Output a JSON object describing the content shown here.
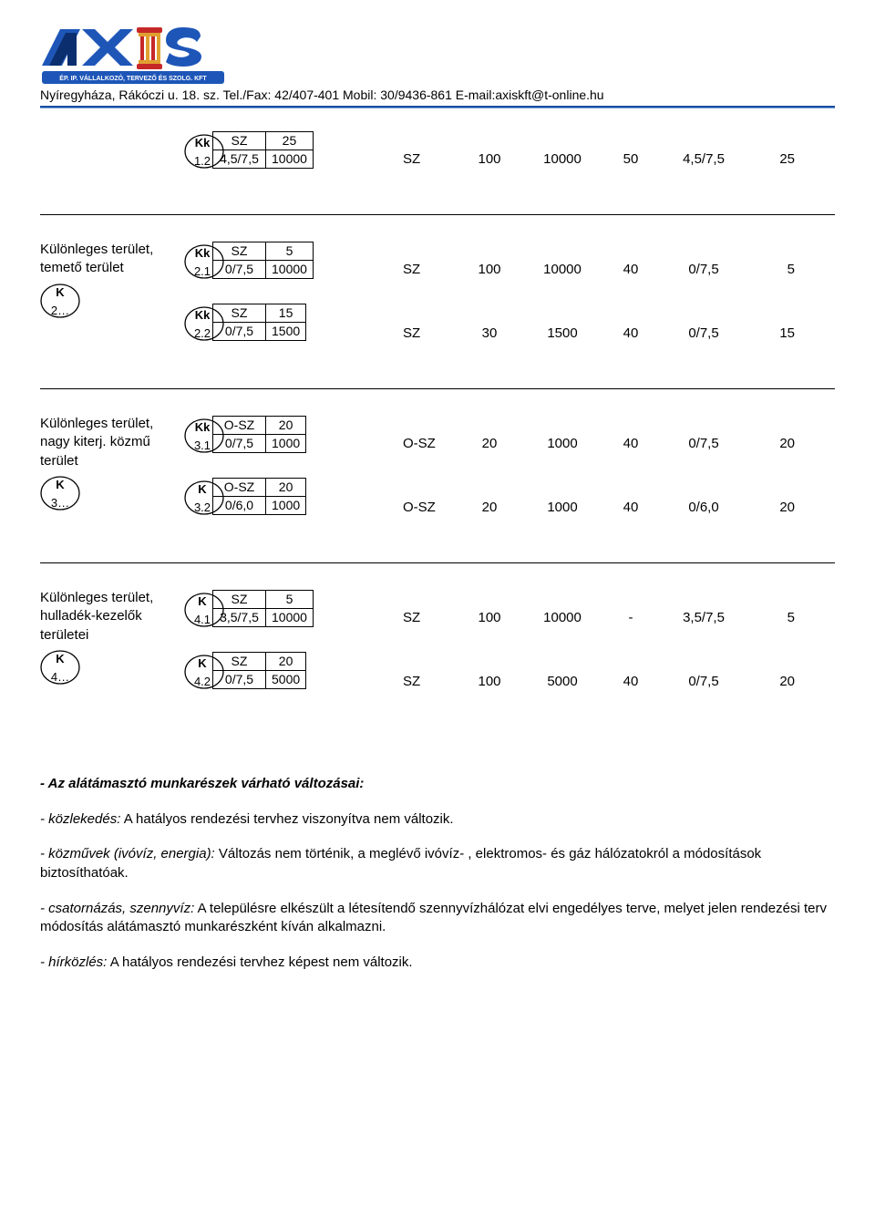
{
  "header": {
    "contact": "Nyíregyháza, Rákóczi u. 18. sz. Tel./Fax: 42/407-401  Mobil: 30/9436-861 E-mail:axiskft@t-online.hu"
  },
  "blocks": [
    {
      "desc": "",
      "desc_lens": null,
      "rows": [
        {
          "mini": {
            "kk": "Kk",
            "a": "SZ",
            "b": "25",
            "c": "1.2",
            "d": "4,5/7,5",
            "e": "10000"
          },
          "data": [
            "SZ",
            "100",
            "10000",
            "50",
            "4,5/7,5",
            "25"
          ]
        }
      ],
      "no_bottom": false,
      "show_colA": false
    },
    {
      "desc": "Különleges terület, temető terület",
      "desc_lens": {
        "top": "K",
        "bot": "2…"
      },
      "rows": [
        {
          "mini": {
            "kk": "Kk",
            "a": "SZ",
            "b": "5",
            "c": "2.1",
            "d": "0/7,5",
            "e": "10000"
          },
          "data": [
            "SZ",
            "100",
            "10000",
            "40",
            "0/7,5",
            "5"
          ]
        },
        {
          "mini": {
            "kk": "Kk",
            "a": "SZ",
            "b": "15",
            "c": "2.2",
            "d": "0/7,5",
            "e": "1500"
          },
          "data": [
            "SZ",
            "30",
            "1500",
            "40",
            "0/7,5",
            "15"
          ]
        }
      ],
      "no_bottom": false,
      "show_colA": true
    },
    {
      "desc": "Különleges terület, nagy kiterj. közmű terület",
      "desc_lens": {
        "top": "K",
        "bot": "3…"
      },
      "rows": [
        {
          "mini": {
            "kk": "Kk",
            "a": "O-SZ",
            "b": "20",
            "c": "3.1",
            "d": "0/7,5",
            "e": "1000"
          },
          "data": [
            "O-SZ",
            "20",
            "1000",
            "40",
            "0/7,5",
            "20"
          ]
        },
        {
          "mini": {
            "kk": "K",
            "a": "O-SZ",
            "b": "20",
            "c": "3.2",
            "d": "0/6,0",
            "e": "1000"
          },
          "data": [
            "O-SZ",
            "20",
            "1000",
            "40",
            "0/6,0",
            "20"
          ]
        }
      ],
      "no_bottom": false,
      "show_colA": true
    },
    {
      "desc": "Különleges terület, hulladék-kezelők területei",
      "desc_lens": {
        "top": "K",
        "bot": "4…"
      },
      "rows": [
        {
          "mini": {
            "kk": "K",
            "a": "SZ",
            "b": "5",
            "c": "4.1",
            "d": "3,5/7,5",
            "e": "10000"
          },
          "data": [
            "SZ",
            "100",
            "10000",
            "-",
            "3,5/7,5",
            "5"
          ]
        },
        {
          "mini": {
            "kk": "K",
            "a": "SZ",
            "b": "20",
            "c": "4.2",
            "d": "0/7,5",
            "e": "5000"
          },
          "data": [
            "SZ",
            "100",
            "5000",
            "40",
            "0/7,5",
            "20"
          ]
        }
      ],
      "no_bottom": true,
      "show_colA": true
    }
  ],
  "prose": {
    "heading": "- Az alátámasztó munkarészek várható változásai:",
    "p1_label": "- közlekedés:",
    "p1_text": " A hatályos rendezési tervhez viszonyítva nem változik.",
    "p2_label": "- közművek (ivóvíz, energia):",
    "p2_text": "  Változás nem történik, a meglévő ivóvíz- , elektromos- és gáz hálózatokról a módosítások biztosíthatóak.",
    "p3_label": "- csatornázás, szennyvíz:",
    "p3_text": " A településre elkészült a létesítendő szennyvízhálózat elvi engedélyes terve, melyet jelen rendezési terv módosítás alátámasztó munkarészként kíván alkalmazni.",
    "p4_label": "- hírközlés:",
    "p4_text": " A hatályos rendezési tervhez képest nem változik."
  },
  "colors": {
    "logo_blue": "#1e56b8",
    "logo_dark": "#0b2e6e",
    "logo_red": "#c62828",
    "rule": "#1a4ea0"
  }
}
